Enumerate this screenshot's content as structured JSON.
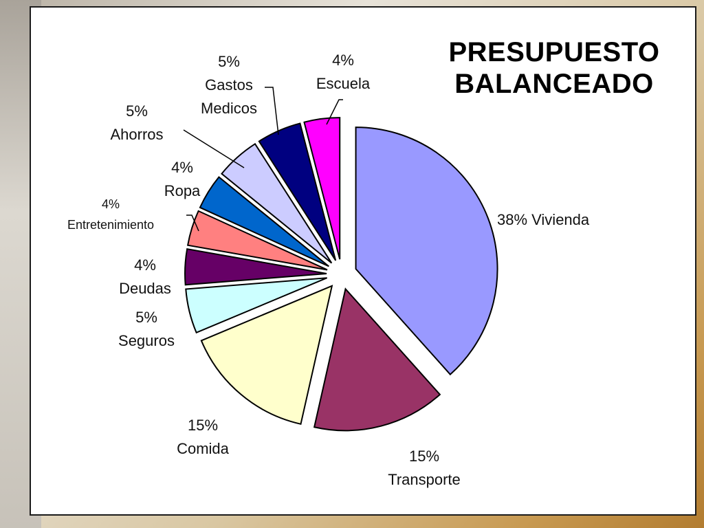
{
  "title_line1": "PRESUPUESTO",
  "title_line2": "BALANCEADO",
  "chart_data": {
    "type": "pie",
    "title": "PRESUPUESTO BALANCEADO",
    "slices": [
      {
        "name": "Vivienda",
        "value": 38,
        "label_lines": [
          "38% Vivienda"
        ],
        "color": "#9999ff",
        "exploded": true
      },
      {
        "name": "Transporte",
        "value": 15,
        "label_lines": [
          "15%",
          "Transporte"
        ],
        "color": "#993366",
        "exploded": true
      },
      {
        "name": "Comida",
        "value": 15,
        "label_lines": [
          "15%",
          "Comida"
        ],
        "color": "#ffffcc",
        "exploded": true
      },
      {
        "name": "Seguros",
        "value": 5,
        "label_lines": [
          "5%",
          "Seguros"
        ],
        "color": "#ccffff",
        "exploded": true
      },
      {
        "name": "Deudas",
        "value": 4,
        "label_lines": [
          "4%",
          "Deudas"
        ],
        "color": "#660066",
        "exploded": true
      },
      {
        "name": "Entretenimiento",
        "value": 4,
        "label_lines": [
          "4%",
          "Entretenimiento"
        ],
        "color": "#ff8080",
        "exploded": true
      },
      {
        "name": "Ropa",
        "value": 4,
        "label_lines": [
          "4%",
          "Ropa"
        ],
        "color": "#0066cc",
        "exploded": true
      },
      {
        "name": "Ahorros",
        "value": 5,
        "label_lines": [
          "5%",
          "Ahorros"
        ],
        "color": "#ccccff",
        "exploded": true
      },
      {
        "name": "Gastos Medicos",
        "value": 5,
        "label_lines": [
          "5%",
          "Gastos",
          "Medicos"
        ],
        "color": "#000080",
        "exploded": true
      },
      {
        "name": "Escuela",
        "value": 4,
        "label_lines": [
          "4%",
          "Escuela"
        ],
        "color": "#ff00ff",
        "exploded": true
      }
    ]
  }
}
